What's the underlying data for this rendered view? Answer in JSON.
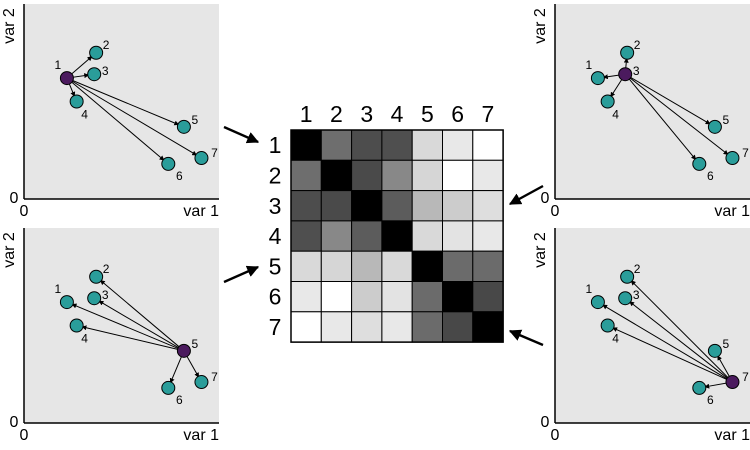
{
  "colors": {
    "panel_bg": "#e6e6e6",
    "point_fill": "#2a9d9a",
    "reference_point_fill": "#4b1a5e",
    "stroke": "#000000"
  },
  "axis_labels": {
    "x": "var 1",
    "y": "var 2",
    "origin": "0"
  },
  "panels": [
    {
      "reference": "1"
    },
    {
      "reference": "3"
    },
    {
      "reference": "5"
    },
    {
      "reference": "7"
    }
  ],
  "points": [
    {
      "label": "1",
      "var1": 0.22,
      "var2": 0.62
    },
    {
      "label": "2",
      "var1": 0.37,
      "var2": 0.75
    },
    {
      "label": "3",
      "var1": 0.36,
      "var2": 0.64
    },
    {
      "label": "4",
      "var1": 0.27,
      "var2": 0.5
    },
    {
      "label": "5",
      "var1": 0.82,
      "var2": 0.37
    },
    {
      "label": "6",
      "var1": 0.74,
      "var2": 0.18
    },
    {
      "label": "7",
      "var1": 0.91,
      "var2": 0.21
    }
  ],
  "matrix": {
    "row_labels": [
      "1",
      "2",
      "3",
      "4",
      "5",
      "6",
      "7"
    ],
    "col_labels": [
      "1",
      "2",
      "3",
      "4",
      "5",
      "6",
      "7"
    ],
    "gray_levels": [
      [
        "#000000",
        "#6e6e6e",
        "#4d4d4d",
        "#4f4f4f",
        "#d9d9d9",
        "#e8e8e8",
        "#ffffff"
      ],
      [
        "#6e6e6e",
        "#000000",
        "#4a4a4a",
        "#888888",
        "#d6d6d6",
        "#ffffff",
        "#e8e8e8"
      ],
      [
        "#4d4d4d",
        "#4a4a4a",
        "#000000",
        "#5c5c5c",
        "#b8b8b8",
        "#cccccc",
        "#dedede"
      ],
      [
        "#4f4f4f",
        "#888888",
        "#5c5c5c",
        "#000000",
        "#d9d9d9",
        "#e3e3e3",
        "#e8e8e8"
      ],
      [
        "#d9d9d9",
        "#d6d6d6",
        "#b8b8b8",
        "#d9d9d9",
        "#000000",
        "#6b6b6b",
        "#6b6b6b"
      ],
      [
        "#e8e8e8",
        "#ffffff",
        "#cccccc",
        "#e3e3e3",
        "#6b6b6b",
        "#000000",
        "#484848"
      ],
      [
        "#ffffff",
        "#e8e8e8",
        "#dedede",
        "#e8e8e8",
        "#6b6b6b",
        "#484848",
        "#000000"
      ]
    ]
  }
}
